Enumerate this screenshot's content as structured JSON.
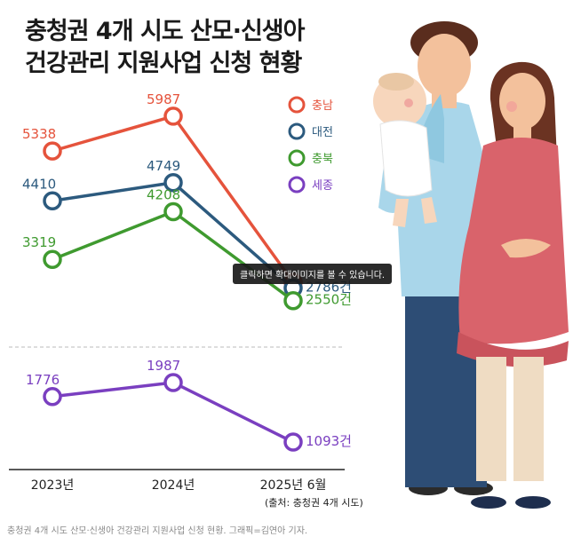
{
  "title": [
    "충청권 4개 시도 산모·신생아",
    "건강관리 지원사업 신청 현황"
  ],
  "tooltip": "클릭하면 확대이미지를 볼 수 있습니다.",
  "caption": "충청권 4개 시도 산모·신생아 건강관리 지원사업 신청 현황. 그래픽=김연아 기자.",
  "chart_data": {
    "type": "line",
    "title": "충청권 4개 시도 산모·신생아 건강관리 지원사업 신청 현황",
    "categories": [
      "2023년",
      "2024년",
      "2025년 6월"
    ],
    "unit_suffix": "건",
    "legend_position": "top-right",
    "source": "(출처: 충청권 4개 시도)",
    "series": [
      {
        "name": "충남",
        "color": "#e5533c",
        "values": [
          5338,
          5987,
          null
        ]
      },
      {
        "name": "대전",
        "color": "#2c5a7e",
        "values": [
          4410,
          4749,
          2786
        ]
      },
      {
        "name": "충북",
        "color": "#3f9a2f",
        "values": [
          3319,
          4208,
          2550
        ]
      },
      {
        "name": "세종",
        "color": "#7a3fc0",
        "values": [
          1776,
          1987,
          1093
        ]
      }
    ]
  }
}
